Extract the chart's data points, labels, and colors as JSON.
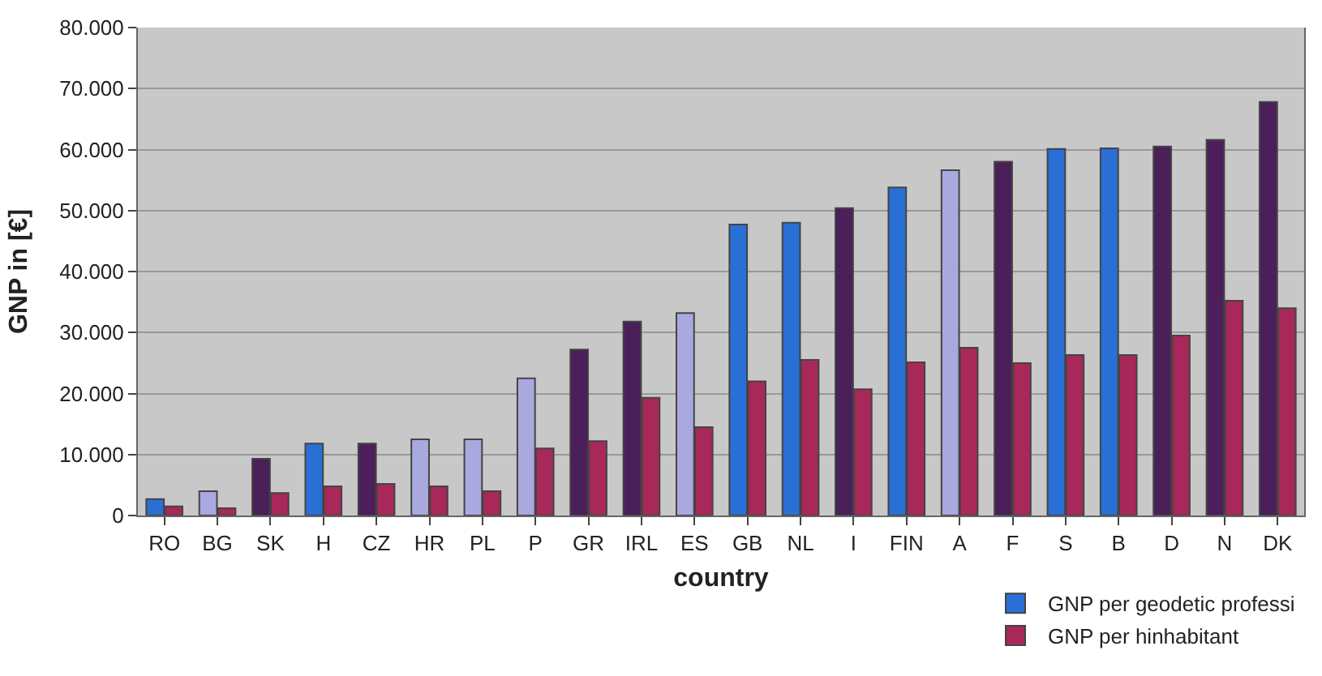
{
  "chart_data": {
    "type": "bar",
    "xlabel": "country",
    "ylabel": "GNP in [€]",
    "categories": [
      "RO",
      "BG",
      "SK",
      "H",
      "CZ",
      "HR",
      "PL",
      "P",
      "GR",
      "IRL",
      "ES",
      "GB",
      "NL",
      "I",
      "FIN",
      "A",
      "F",
      "S",
      "B",
      "D",
      "N",
      "DK"
    ],
    "series": [
      {
        "name": "GNP per geodetic professi",
        "color": "#a9a9e0",
        "colors": [
          "#2a6fd6",
          "#a9a9e0",
          "#4a1f5a",
          "#2a6fd6",
          "#4a1f5a",
          "#a9a9e0",
          "#a9a9e0",
          "#a9a9e0",
          "#4a1f5a",
          "#4a1f5a",
          "#a9a9e0",
          "#2a6fd6",
          "#2a6fd6",
          "#4a1f5a",
          "#2a6fd6",
          "#a9a9e0",
          "#4a1f5a",
          "#2a6fd6",
          "#2a6fd6",
          "#4a1f5a",
          "#4a1f5a",
          "#4a1f5a"
        ],
        "values": [
          2700,
          4000,
          9300,
          11800,
          11800,
          12500,
          12500,
          22500,
          27200,
          31800,
          33200,
          47700,
          48000,
          50400,
          53800,
          56600,
          58000,
          60100,
          60200,
          60500,
          61600,
          67800
        ]
      },
      {
        "name": "GNP per hinhabitant",
        "color": "#a8285a",
        "values": [
          1500,
          1200,
          3700,
          4800,
          5200,
          4800,
          4000,
          11000,
          12200,
          19300,
          14500,
          22000,
          25500,
          20700,
          25100,
          27500,
          25000,
          26300,
          26300,
          29500,
          35200,
          34000
        ]
      }
    ],
    "ylim": [
      0,
      80000
    ],
    "yticks": [
      0,
      {
        "value": 10000,
        "label": "10.000"
      },
      {
        "value": 20000,
        "label": "20.000"
      },
      {
        "value": 30000,
        "label": "30.000"
      },
      {
        "value": 40000,
        "label": "40.000"
      },
      {
        "value": 50000,
        "label": "50.000"
      },
      {
        "value": 60000,
        "label": "60.000"
      },
      {
        "value": 70000,
        "label": "70.000"
      },
      {
        "value": 80000,
        "label": "80.000"
      }
    ],
    "grid": "y",
    "legend": "bottom right"
  }
}
